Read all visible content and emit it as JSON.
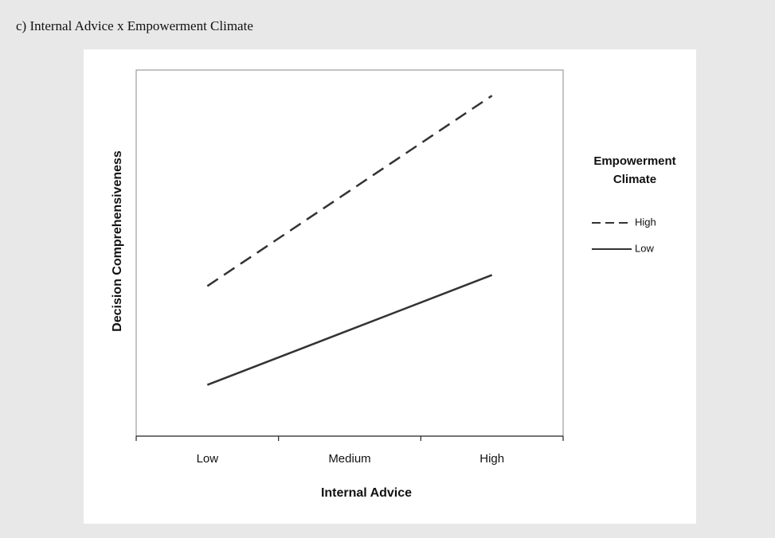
{
  "chart_data": {
    "type": "line",
    "title": "c) Internal Advice x Empowerment Climate",
    "x_label": "Internal Advice",
    "y_label": "Decision Comprehensiveness",
    "legend_title": "Empowerment Climate",
    "legend_position": "right",
    "categories": [
      "Low",
      "Medium",
      "High"
    ],
    "ylim": [
      0,
      10
    ],
    "yticks": [],
    "series": [
      {
        "name": "High",
        "color": "#333333",
        "line_style": "dashed",
        "values": [
          4.1,
          6.7,
          9.3
        ]
      },
      {
        "name": "Low",
        "color": "#333333",
        "line_style": "solid",
        "values": [
          1.4,
          2.9,
          4.4
        ]
      }
    ]
  }
}
